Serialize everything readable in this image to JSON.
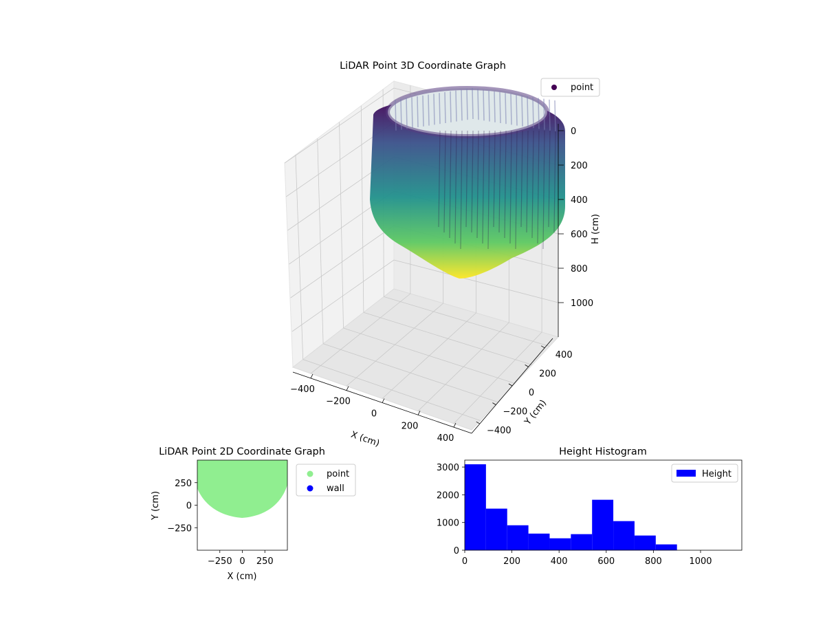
{
  "colors": {
    "viridis": [
      "#440154",
      "#3b528b",
      "#21918c",
      "#5ec962",
      "#fde725"
    ],
    "point_2d": "#90ee90",
    "wall_2d": "#0000ff",
    "hist_fill": "#0000ff",
    "pane": "#f2f2f2",
    "grid": "#c8c8c8"
  },
  "chart_data": [
    {
      "type": "scatter",
      "title": "LiDAR Point 3D Coordinate Graph",
      "xlabel": "X (cm)",
      "ylabel": "Y (cm)",
      "zlabel": "H (cm)",
      "xlim": [
        -500,
        500
      ],
      "ylim": [
        -500,
        500
      ],
      "zlim": [
        0,
        1100
      ],
      "x_ticks": [
        "−400",
        "−200",
        "0",
        "200",
        "400"
      ],
      "y_ticks": [
        "−400",
        "−200",
        "0",
        "200",
        "400"
      ],
      "z_ticks": [
        "0",
        "200",
        "400",
        "600",
        "800",
        "1000"
      ],
      "z_inverted": true,
      "colormap": "viridis",
      "legend": {
        "entries": [
          "point"
        ],
        "placement": "top-right"
      },
      "grid": true
    },
    {
      "type": "scatter",
      "title": "LiDAR Point 2D Coordinate Graph",
      "xlabel": "X (cm)",
      "ylabel": "Y (cm)",
      "xlim": [
        -500,
        500
      ],
      "ylim": [
        -500,
        500
      ],
      "x_ticks": [
        "−250",
        "0",
        "250"
      ],
      "y_ticks": [
        "250",
        "0",
        "−250"
      ],
      "legend": {
        "entries": [
          "point",
          "wall"
        ],
        "placement": "outside-right"
      },
      "grid": false
    },
    {
      "type": "bar",
      "title": "Height Histogram",
      "xlabel": "",
      "ylabel": "",
      "xlim": [
        0,
        1175
      ],
      "ylim": [
        0,
        3250
      ],
      "x_ticks": [
        "0",
        "200",
        "400",
        "600",
        "800",
        "1000"
      ],
      "y_ticks": [
        "0",
        "1000",
        "2000",
        "3000"
      ],
      "bin_edges": [
        0,
        90,
        180,
        270,
        360,
        450,
        540,
        630,
        720,
        810,
        900
      ],
      "values": [
        3100,
        1500,
        900,
        600,
        430,
        580,
        1820,
        1050,
        530,
        210
      ],
      "series": [
        {
          "name": "Height"
        }
      ],
      "legend": {
        "entries": [
          "Height"
        ],
        "placement": "upper right"
      },
      "grid": false
    }
  ]
}
